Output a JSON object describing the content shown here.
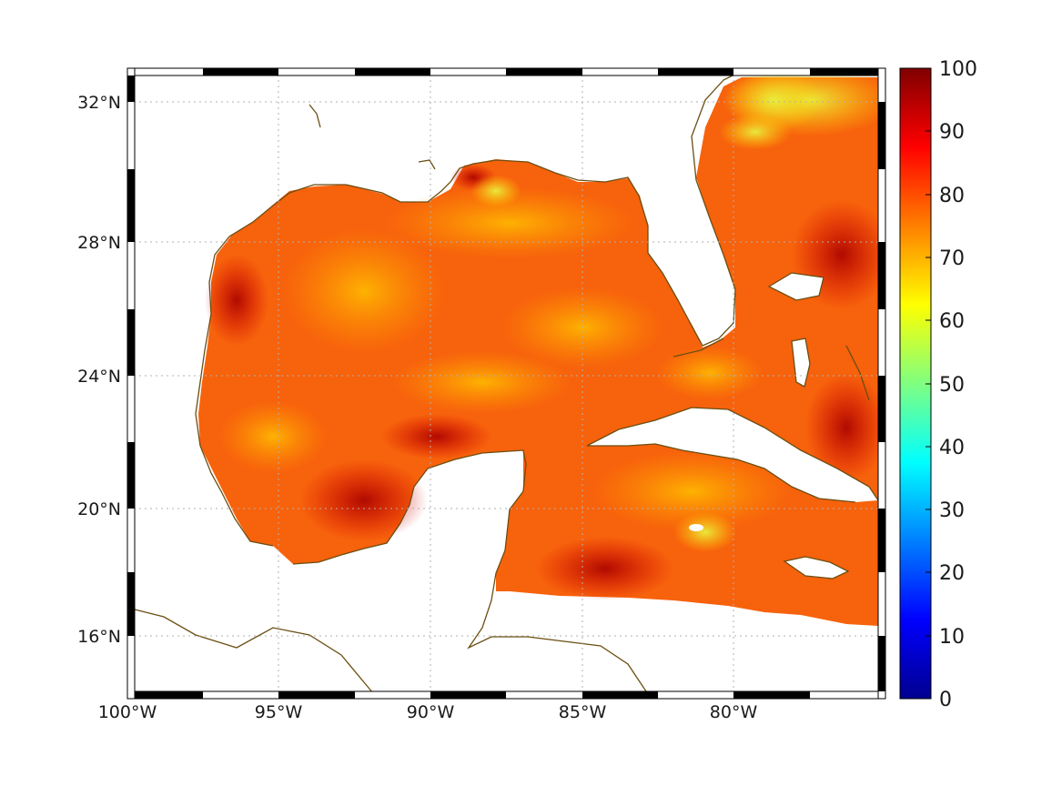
{
  "map": {
    "longitude_labels": [
      "100°W",
      "95°W",
      "90°W",
      "85°W",
      "80°W"
    ],
    "longitude_values": [
      -100,
      -95,
      -90,
      -85,
      -80
    ],
    "latitude_labels": [
      "32°N",
      "28°N",
      "24°N",
      "20°N",
      "16°N"
    ],
    "latitude_values": [
      32,
      28,
      24,
      20,
      16
    ],
    "extent": {
      "lon_min": -100,
      "lon_max": -75,
      "lat_min": 15,
      "lat_max": 33
    },
    "grid": true,
    "frame_style": "black-white checkered",
    "coastline_color": "#6b4e12",
    "land_color": "#ffffff",
    "field_region": "Gulf of Mexico, Florida Straits, Caribbean Sea west of Jamaica"
  },
  "colorbar": {
    "tick_labels": [
      "100",
      "90",
      "80",
      "70",
      "60",
      "50",
      "40",
      "30",
      "20",
      "10",
      "0"
    ],
    "min": 0,
    "max": 100,
    "colormap": "jet",
    "colors": [
      "#00008f",
      "#0000ff",
      "#0080ff",
      "#00ffff",
      "#80ff80",
      "#ffff00",
      "#ff8000",
      "#ff0000",
      "#800000"
    ]
  }
}
